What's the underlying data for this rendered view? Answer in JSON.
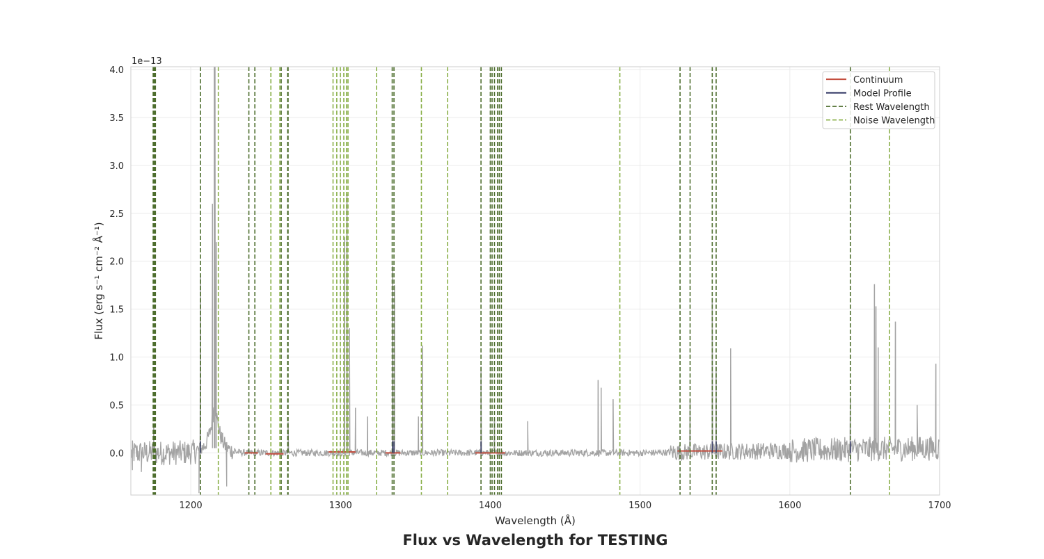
{
  "chart_data": {
    "type": "line",
    "title": "Flux vs Wavelength for TESTING",
    "xlabel": "Wavelength (Å)",
    "ylabel": "Flux (erg s⁻¹ cm⁻² Å⁻¹)",
    "y_offset_label": "1e−13",
    "xlim": [
      1160,
      1700
    ],
    "ylim": [
      -0.44,
      4.03
    ],
    "x_ticks": [
      1200,
      1300,
      1400,
      1500,
      1600,
      1700
    ],
    "x_tick_labels": [
      "1200",
      "1300",
      "1400",
      "1500",
      "1600",
      "1700"
    ],
    "y_ticks": [
      0.0,
      0.5,
      1.0,
      1.5,
      2.0,
      2.5,
      3.0,
      3.5,
      4.0
    ],
    "y_tick_labels": [
      "0.0",
      "0.5",
      "1.0",
      "1.5",
      "2.0",
      "2.5",
      "3.0",
      "3.5",
      "4.0"
    ],
    "grid": true,
    "legend_position": "top-right",
    "legend": [
      {
        "label": "Continuum",
        "style": "solid",
        "color": "#c44e3f"
      },
      {
        "label": "Model Profile",
        "style": "solid",
        "color": "#3b3f6b"
      },
      {
        "label": "Rest Wavelength",
        "style": "dashed",
        "color": "#4e6e2e"
      },
      {
        "label": "Noise Wavelength",
        "style": "dashed",
        "color": "#8ab04a"
      }
    ],
    "colors": {
      "spectrum": "#a3a3a3",
      "continuum": "#c44e3f",
      "model": "#3b3f6b",
      "rest": "#4e6e2e",
      "noise": "#8ab04a",
      "grid": "#ebebeb",
      "frame": "#cccccc"
    },
    "rest_wavelengths": [
      1174.9,
      1175.3,
      1175.7,
      1176.0,
      1176.4,
      1206.5,
      1238.8,
      1242.8,
      1260.4,
      1264.7,
      1265.0,
      1334.5,
      1335.7,
      1393.8,
      1400.0,
      1401.2,
      1402.8,
      1404.8,
      1406.0,
      1407.4,
      1526.7,
      1533.4,
      1548.2,
      1550.8,
      1640.4
    ],
    "noise_wavelengths": [
      1218.4,
      1253.5,
      1259.5,
      1295.0,
      1297.5,
      1299.9,
      1302.2,
      1304.0,
      1305.0,
      1324.0,
      1354.0,
      1371.5,
      1486.5,
      1666.5
    ],
    "spectrum_peaks": [
      {
        "x": 1175.3,
        "y": 0.3
      },
      {
        "x": 1206.5,
        "y": 1.85
      },
      {
        "x": 1214.5,
        "y": 2.6
      },
      {
        "x": 1215.7,
        "y": 4.03
      },
      {
        "x": 1216.2,
        "y": 4.03
      },
      {
        "x": 1217.0,
        "y": 2.2
      },
      {
        "x": 1265.0,
        "y": 0.32
      },
      {
        "x": 1302.7,
        "y": 2.25
      },
      {
        "x": 1304.3,
        "y": 2.7
      },
      {
        "x": 1306.0,
        "y": 1.3
      },
      {
        "x": 1310.0,
        "y": 0.47
      },
      {
        "x": 1318.0,
        "y": 0.38
      },
      {
        "x": 1334.8,
        "y": 1.95
      },
      {
        "x": 1336.0,
        "y": 1.75
      },
      {
        "x": 1352.0,
        "y": 0.38
      },
      {
        "x": 1354.7,
        "y": 1.12
      },
      {
        "x": 1393.8,
        "y": 0.9
      },
      {
        "x": 1402.8,
        "y": 0.35
      },
      {
        "x": 1425.0,
        "y": 0.33
      },
      {
        "x": 1472.0,
        "y": 0.76
      },
      {
        "x": 1474.0,
        "y": 0.68
      },
      {
        "x": 1482.0,
        "y": 0.56
      },
      {
        "x": 1533.4,
        "y": 0.55
      },
      {
        "x": 1548.2,
        "y": 1.62
      },
      {
        "x": 1550.8,
        "y": 0.9
      },
      {
        "x": 1560.5,
        "y": 1.09
      },
      {
        "x": 1640.4,
        "y": 0.58
      },
      {
        "x": 1656.5,
        "y": 1.76
      },
      {
        "x": 1657.5,
        "y": 1.53
      },
      {
        "x": 1659.0,
        "y": 1.1
      },
      {
        "x": 1670.5,
        "y": 1.37
      },
      {
        "x": 1685.0,
        "y": 0.5
      },
      {
        "x": 1697.5,
        "y": 0.93
      }
    ],
    "spectrum_dips": [
      {
        "x": 1161.0,
        "y": -0.18
      },
      {
        "x": 1167.0,
        "y": -0.2
      },
      {
        "x": 1205.5,
        "y": -0.42
      },
      {
        "x": 1224.0,
        "y": -0.35
      }
    ],
    "continuum_segments": [
      {
        "x": [
          1236,
          1245
        ],
        "y": [
          0.0,
          0.0
        ]
      },
      {
        "x": [
          1250,
          1262
        ],
        "y": [
          -0.01,
          -0.01
        ]
      },
      {
        "x": [
          1292,
          1310
        ],
        "y": [
          0.01,
          0.01
        ]
      },
      {
        "x": [
          1330,
          1340
        ],
        "y": [
          0.0,
          0.0
        ]
      },
      {
        "x": [
          1390,
          1410
        ],
        "y": [
          0.0,
          0.0
        ]
      },
      {
        "x": [
          1525,
          1555
        ],
        "y": [
          0.02,
          0.02
        ]
      }
    ]
  }
}
